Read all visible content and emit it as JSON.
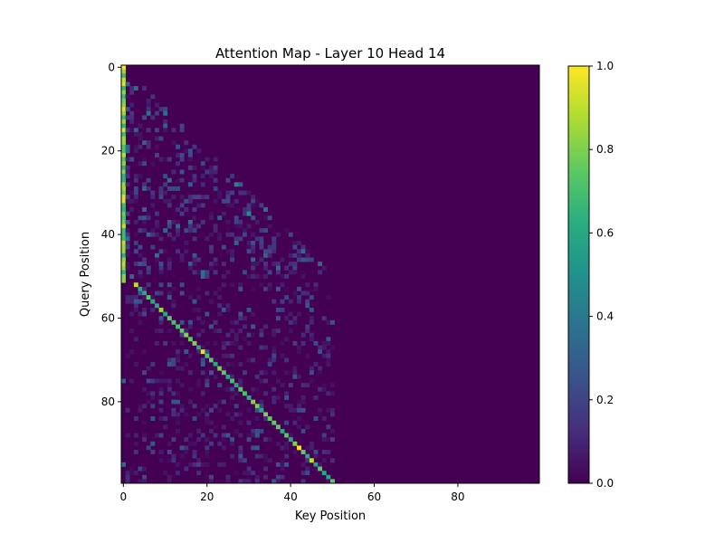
{
  "chart_data": {
    "type": "heatmap",
    "title": "Attention Map - Layer 10 Head 14",
    "xlabel": "Key Position",
    "ylabel": "Query Position",
    "size": 100,
    "xlim": [
      0,
      99
    ],
    "ylim": [
      99,
      0
    ],
    "x_ticks": [
      0,
      20,
      40,
      60,
      80
    ],
    "y_ticks": [
      0,
      20,
      40,
      60,
      80
    ],
    "colormap": "viridis",
    "color_range": [
      0.0,
      1.0
    ],
    "colorbar_ticks": [
      "0.0",
      "0.2",
      "0.4",
      "0.6",
      "0.8",
      "1.0"
    ],
    "background_value": 0.0,
    "structure": {
      "first_column_key": 0,
      "first_column_query_range": [
        0,
        51
      ],
      "first_column_values": [
        0.95,
        0.9,
        0.85,
        0.82,
        0.78,
        0.72,
        0.68,
        0.65
      ],
      "upper_block_query_range": [
        1,
        50
      ],
      "upper_block_diagonal_offset": 0,
      "upper_block_values": [
        0.05,
        0.1,
        0.15,
        0.25
      ],
      "diagonal_query_range": [
        52,
        99
      ],
      "diagonal_key_offset": -49,
      "diagonal_values": [
        0.6,
        0.7,
        0.75,
        0.8
      ],
      "lower_block_query_range": [
        52,
        99
      ],
      "lower_block_key_range": [
        0,
        50
      ],
      "lower_block_values": [
        0.05,
        0.1,
        0.2
      ]
    },
    "highlights": [
      {
        "query": 0,
        "key": 0,
        "value": 1.0
      },
      {
        "query": 52,
        "key": 3,
        "value": 0.9
      },
      {
        "query": 58,
        "key": 9,
        "value": 0.85
      },
      {
        "query": 68,
        "key": 19,
        "value": 0.95
      },
      {
        "query": 80,
        "key": 31,
        "value": 0.8
      },
      {
        "query": 91,
        "key": 42,
        "value": 1.0
      },
      {
        "query": 94,
        "key": 45,
        "value": 0.9
      },
      {
        "query": 35,
        "key": 30,
        "value": 0.5
      },
      {
        "query": 28,
        "key": 27,
        "value": 0.45
      },
      {
        "query": 44,
        "key": 43,
        "value": 0.35
      },
      {
        "query": 11,
        "key": 10,
        "value": 0.35
      },
      {
        "query": 14,
        "key": 10,
        "value": 0.3
      },
      {
        "query": 95,
        "key": 0,
        "value": 0.35
      },
      {
        "query": 75,
        "key": 0,
        "value": 0.3
      }
    ]
  }
}
